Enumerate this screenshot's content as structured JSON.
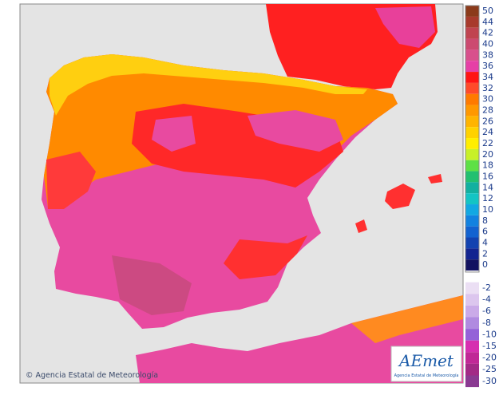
{
  "map": {
    "credit": "© Agencia Estatal de Meteorología"
  },
  "logo": {
    "name": "AEmet",
    "subtitle": "Agencia Estatal de Meteorología"
  },
  "legend": {
    "items": [
      {
        "label": "50",
        "color": "#8b3a1a"
      },
      {
        "label": "44",
        "color": "#a83a2c"
      },
      {
        "label": "42",
        "color": "#c04450"
      },
      {
        "label": "40",
        "color": "#cc4a70"
      },
      {
        "label": "38",
        "color": "#d8508c"
      },
      {
        "label": "36",
        "color": "#e640a6"
      },
      {
        "label": "34",
        "color": "#ff1414"
      },
      {
        "label": "32",
        "color": "#ff4a2a"
      },
      {
        "label": "30",
        "color": "#ff7a00"
      },
      {
        "label": "28",
        "color": "#ff9800"
      },
      {
        "label": "26",
        "color": "#ffb400"
      },
      {
        "label": "24",
        "color": "#ffd200"
      },
      {
        "label": "22",
        "color": "#ffee00"
      },
      {
        "label": "20",
        "color": "#c8f028"
      },
      {
        "label": "18",
        "color": "#5ee046"
      },
      {
        "label": "16",
        "color": "#22c070"
      },
      {
        "label": "14",
        "color": "#12b0a0"
      },
      {
        "label": "12",
        "color": "#14c4c4"
      },
      {
        "label": "10",
        "color": "#12a8e2"
      },
      {
        "label": "8",
        "color": "#1282e0"
      },
      {
        "label": "6",
        "color": "#1262d0"
      },
      {
        "label": "4",
        "color": "#1242b0"
      },
      {
        "label": "2",
        "color": "#122490"
      },
      {
        "label": "0",
        "color": "#121260"
      },
      {
        "label": "-2",
        "color": "#ebdff4"
      },
      {
        "label": "-4",
        "color": "#dcc6ee"
      },
      {
        "label": "-6",
        "color": "#caaae8"
      },
      {
        "label": "-8",
        "color": "#b08ae0"
      },
      {
        "label": "-10",
        "color": "#9462d8"
      },
      {
        "label": "-15",
        "color": "#d630b0"
      },
      {
        "label": "-20",
        "color": "#c02896"
      },
      {
        "label": "-25",
        "color": "#a22a86"
      },
      {
        "label": "-30",
        "color": "#8a3a92"
      }
    ]
  }
}
